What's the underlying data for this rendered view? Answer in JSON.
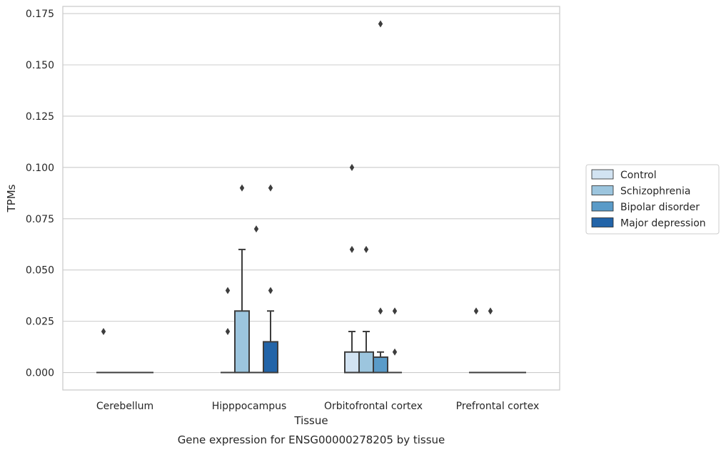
{
  "caption": "Gene expression for ENSG00000278205 by tissue",
  "chart_data": {
    "type": "box",
    "xlabel": "Tissue",
    "ylabel": "TPMs",
    "ylim": [
      -0.0085,
      0.1785
    ],
    "yticks": [
      "0.000",
      "0.025",
      "0.050",
      "0.075",
      "0.100",
      "0.125",
      "0.150",
      "0.175"
    ],
    "ytick_values": [
      0,
      0.025,
      0.05,
      0.075,
      0.1,
      0.125,
      0.15,
      0.175
    ],
    "categories": [
      "Cerebellum",
      "Hipppocampus",
      "Orbitofrontal cortex",
      "Prefrontal cortex"
    ],
    "grid": "horizontal",
    "legend_position": "right",
    "series": [
      {
        "name": "Control",
        "color": "#d2e3f2",
        "boxes": [
          {
            "q1": 0,
            "median": 0,
            "q3": 0,
            "whislo": 0,
            "whishi": 0,
            "fliers": [
              0.02
            ]
          },
          {
            "q1": 0,
            "median": 0,
            "q3": 0,
            "whislo": 0,
            "whishi": 0,
            "fliers": [
              0.02,
              0.04
            ]
          },
          {
            "q1": 0,
            "median": 0,
            "q3": 0.01,
            "whislo": 0,
            "whishi": 0.02,
            "fliers": [
              0.06,
              0.1
            ]
          },
          {
            "q1": 0,
            "median": 0,
            "q3": 0,
            "whislo": 0,
            "whishi": 0,
            "fliers": [
              0.03
            ]
          }
        ]
      },
      {
        "name": "Schizophrenia",
        "color": "#9cc5de",
        "boxes": [
          {
            "q1": 0,
            "median": 0,
            "q3": 0,
            "whislo": 0,
            "whishi": 0,
            "fliers": []
          },
          {
            "q1": 0,
            "median": 0,
            "q3": 0.03,
            "whislo": 0,
            "whishi": 0.06,
            "fliers": [
              0.09
            ]
          },
          {
            "q1": 0,
            "median": 0,
            "q3": 0.01,
            "whislo": 0,
            "whishi": 0.02,
            "fliers": [
              0.06
            ]
          },
          {
            "q1": 0,
            "median": 0,
            "q3": 0,
            "whislo": 0,
            "whishi": 0,
            "fliers": [
              0.03
            ]
          }
        ]
      },
      {
        "name": "Bipolar disorder",
        "color": "#5a9bc8",
        "boxes": [
          {
            "q1": 0,
            "median": 0,
            "q3": 0,
            "whislo": 0,
            "whishi": 0,
            "fliers": []
          },
          {
            "q1": 0,
            "median": 0,
            "q3": 0,
            "whislo": 0,
            "whishi": 0,
            "fliers": [
              0.07
            ]
          },
          {
            "q1": 0,
            "median": 0,
            "q3": 0.0075,
            "whislo": 0,
            "whishi": 0.01,
            "fliers": [
              0.03,
              0.17
            ]
          },
          {
            "q1": 0,
            "median": 0,
            "q3": 0,
            "whislo": 0,
            "whishi": 0,
            "fliers": []
          }
        ]
      },
      {
        "name": "Major depression",
        "color": "#2264a8",
        "boxes": [
          {
            "q1": 0,
            "median": 0,
            "q3": 0,
            "whislo": 0,
            "whishi": 0,
            "fliers": []
          },
          {
            "q1": 0,
            "median": 0,
            "q3": 0.015,
            "whislo": 0,
            "whishi": 0.03,
            "fliers": [
              0.04,
              0.09
            ]
          },
          {
            "q1": 0,
            "median": 0,
            "q3": 0,
            "whislo": 0,
            "whishi": 0,
            "fliers": [
              0.01,
              0.03
            ]
          },
          {
            "q1": 0,
            "median": 0,
            "q3": 0,
            "whislo": 0,
            "whishi": 0,
            "fliers": []
          }
        ]
      }
    ]
  }
}
